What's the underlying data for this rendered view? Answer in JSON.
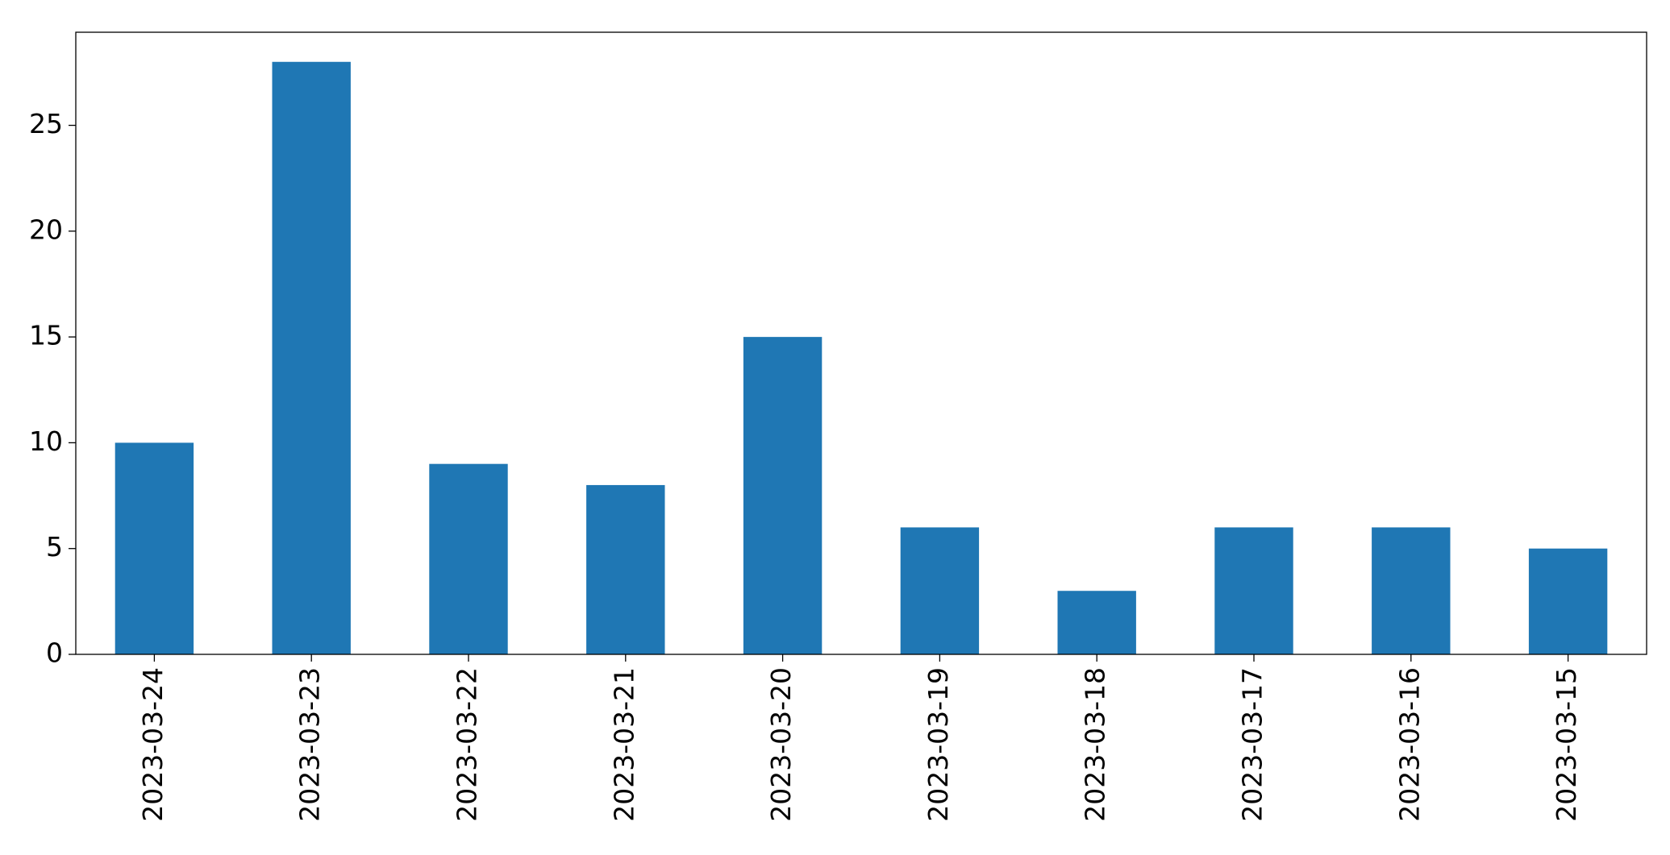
{
  "chart_data": {
    "type": "bar",
    "categories": [
      "2023-03-24",
      "2023-03-23",
      "2023-03-22",
      "2023-03-21",
      "2023-03-20",
      "2023-03-19",
      "2023-03-18",
      "2023-03-17",
      "2023-03-16",
      "2023-03-15"
    ],
    "values": [
      10,
      28,
      9,
      8,
      15,
      6,
      3,
      6,
      6,
      5
    ],
    "color": "#1f77b4",
    "ylim": [
      0,
      29.4
    ],
    "yticks": [
      0,
      5,
      10,
      15,
      20,
      25
    ],
    "grid": false
  }
}
